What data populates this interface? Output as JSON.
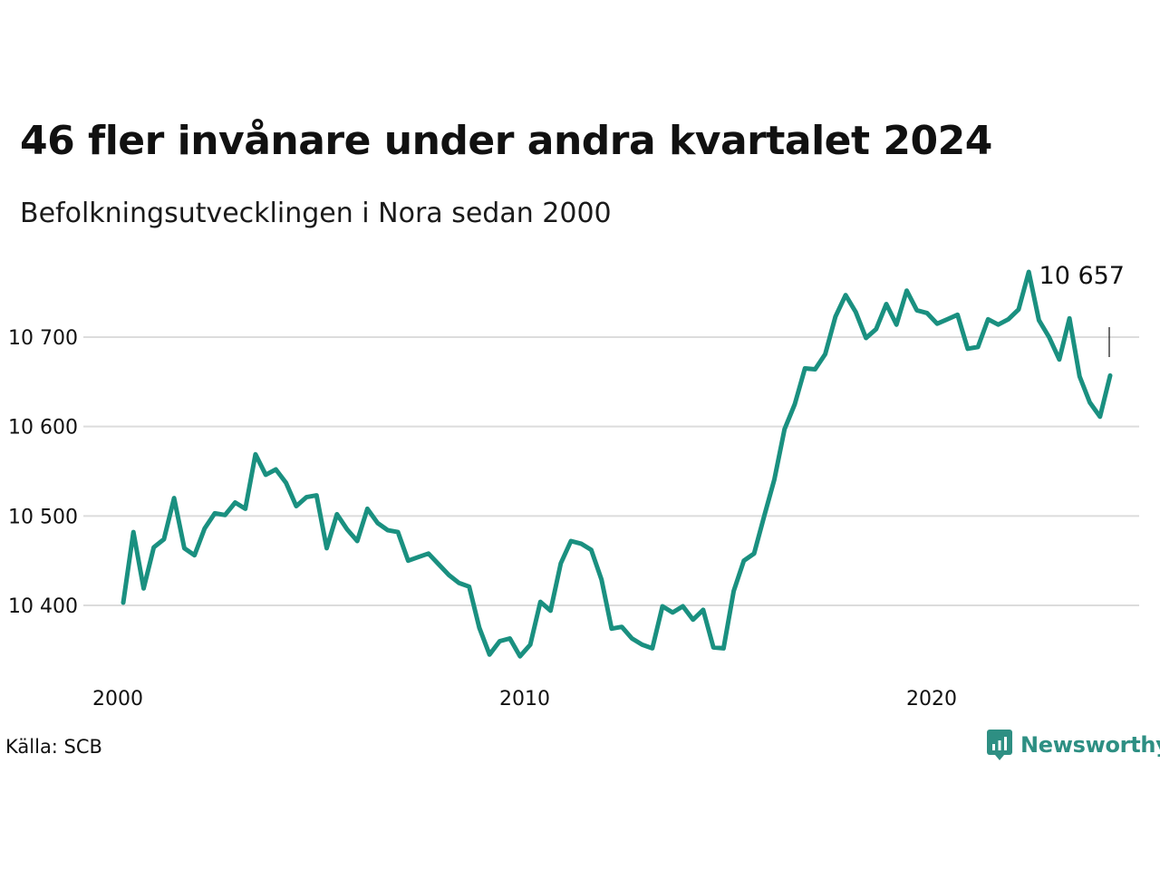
{
  "title": "46 fler invånare under andra kvartalet 2024",
  "subtitle": "Befolkningsutvecklingen i Nora sedan 2000",
  "source": "Källa: SCB",
  "brand": {
    "name": "Newsworthy",
    "icon": "newsworthy-logo-icon",
    "color": "#2e8f83"
  },
  "colors": {
    "line": "#1a9080",
    "grid": "#dcdcdc",
    "text": "#111111"
  },
  "chart_data": {
    "type": "line",
    "title": "46 fler invånare under andra kvartalet 2024",
    "subtitle": "Befolkningsutvecklingen i Nora sedan 2000",
    "xlabel": "",
    "ylabel": "",
    "ylim": [
      10300,
      10800
    ],
    "xlim": [
      2000,
      2025
    ],
    "y_ticks": [
      10400,
      10500,
      10600,
      10700
    ],
    "y_tick_labels": [
      "10 400",
      "10 500",
      "10 600",
      "10 700"
    ],
    "x_ticks": [
      2000,
      2010,
      2020
    ],
    "x_tick_labels": [
      "2000",
      "2010",
      "2020"
    ],
    "grid": "horizontal",
    "end_label": "10 657",
    "x": [
      "2000 Q1",
      "2000 Q2",
      "2000 Q3",
      "2000 Q4",
      "2001 Q1",
      "2001 Q2",
      "2001 Q3",
      "2001 Q4",
      "2002 Q1",
      "2002 Q2",
      "2002 Q3",
      "2002 Q4",
      "2003 Q1",
      "2003 Q2",
      "2003 Q3",
      "2003 Q4",
      "2004 Q1",
      "2004 Q2",
      "2004 Q3",
      "2004 Q4",
      "2005 Q1",
      "2005 Q2",
      "2005 Q3",
      "2005 Q4",
      "2006 Q1",
      "2006 Q2",
      "2006 Q3",
      "2006 Q4",
      "2007 Q1",
      "2007 Q2",
      "2007 Q3",
      "2007 Q4",
      "2008 Q1",
      "2008 Q2",
      "2008 Q3",
      "2008 Q4",
      "2009 Q1",
      "2009 Q2",
      "2009 Q3",
      "2009 Q4",
      "2010 Q1",
      "2010 Q2",
      "2010 Q3",
      "2010 Q4",
      "2011 Q1",
      "2011 Q2",
      "2011 Q3",
      "2011 Q4",
      "2012 Q1",
      "2012 Q2",
      "2012 Q3",
      "2012 Q4",
      "2013 Q1",
      "2013 Q2",
      "2013 Q3",
      "2013 Q4",
      "2014 Q1",
      "2014 Q2",
      "2014 Q3",
      "2014 Q4",
      "2015 Q1",
      "2015 Q2",
      "2015 Q3",
      "2015 Q4",
      "2016 Q1",
      "2016 Q2",
      "2016 Q3",
      "2016 Q4",
      "2017 Q1",
      "2017 Q2",
      "2017 Q3",
      "2017 Q4",
      "2018 Q1",
      "2018 Q2",
      "2018 Q3",
      "2018 Q4",
      "2019 Q1",
      "2019 Q2",
      "2019 Q3",
      "2019 Q4",
      "2020 Q1",
      "2020 Q2",
      "2020 Q3",
      "2020 Q4",
      "2021 Q1",
      "2021 Q2",
      "2021 Q3",
      "2021 Q4",
      "2022 Q1",
      "2022 Q2",
      "2022 Q3",
      "2022 Q4",
      "2023 Q1",
      "2023 Q2",
      "2023 Q3",
      "2023 Q4",
      "2024 Q1",
      "2024 Q2"
    ],
    "values": [
      10403,
      10482,
      10419,
      10465,
      10474,
      10520,
      10464,
      10456,
      10486,
      10503,
      10501,
      10515,
      10508,
      10569,
      10546,
      10552,
      10537,
      10511,
      10521,
      10523,
      10464,
      10502,
      10485,
      10472,
      10508,
      10492,
      10484,
      10482,
      10450,
      10454,
      10458,
      10446,
      10434,
      10425,
      10421,
      10375,
      10345,
      10360,
      10363,
      10343,
      10356,
      10404,
      10394,
      10447,
      10472,
      10469,
      10462,
      10429,
      10374,
      10376,
      10363,
      10356,
      10352,
      10399,
      10392,
      10399,
      10384,
      10395,
      10353,
      10352,
      10416,
      10450,
      10458,
      10500,
      10541,
      10597,
      10625,
      10665,
      10664,
      10681,
      10723,
      10747,
      10728,
      10699,
      10709,
      10737,
      10714,
      10752,
      10730,
      10727,
      10715,
      10720,
      10725,
      10687,
      10689,
      10720,
      10714,
      10720,
      10731,
      10773,
      10719,
      10700,
      10675,
      10721,
      10656,
      10627,
      10611,
      10657
    ]
  }
}
